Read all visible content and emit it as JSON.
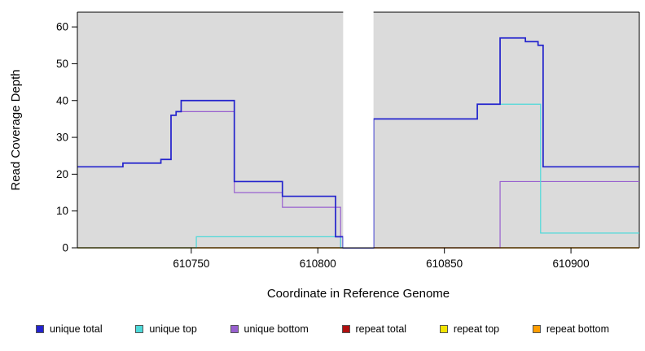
{
  "chart_data": {
    "type": "line",
    "step": true,
    "title": "",
    "xlabel": "Coordinate in Reference Genome",
    "ylabel": "Read Coverage Depth",
    "xlim": [
      610705,
      610927
    ],
    "ylim": [
      0,
      64
    ],
    "xticks": [
      610750,
      610800,
      610850,
      610900
    ],
    "yticks": [
      0,
      10,
      20,
      30,
      40,
      50,
      60
    ],
    "grid": false,
    "plot_bg": "#dbdbdb",
    "gap_band": {
      "x0": 610810,
      "x1": 610822,
      "color": "#ffffff"
    },
    "legend_position": "bottom",
    "draw_order": [
      "repeat total",
      "repeat top",
      "unique bottom",
      "repeat bottom",
      "unique top",
      "unique total"
    ],
    "series": [
      {
        "name": "unique total",
        "color": "#2323cd",
        "width": 1.7,
        "points": [
          [
            610705,
            22
          ],
          [
            610723,
            23
          ],
          [
            610738,
            24
          ],
          [
            610742,
            36
          ],
          [
            610744,
            37
          ],
          [
            610746,
            40
          ],
          [
            610767,
            18
          ],
          [
            610786,
            14
          ],
          [
            610807,
            3
          ],
          [
            610810,
            0
          ],
          [
            610822,
            35
          ],
          [
            610863,
            39
          ],
          [
            610872,
            57
          ],
          [
            610882,
            56
          ],
          [
            610887,
            55
          ],
          [
            610889,
            22
          ],
          [
            610927,
            22
          ]
        ]
      },
      {
        "name": "unique top",
        "color": "#4dd9d9",
        "width": 1.2,
        "points": [
          [
            610705,
            0
          ],
          [
            610752,
            3
          ],
          [
            610809,
            0
          ],
          [
            610822,
            35
          ],
          [
            610863,
            39
          ],
          [
            610888,
            4
          ],
          [
            610927,
            4
          ]
        ]
      },
      {
        "name": "unique bottom",
        "color": "#9860cf",
        "width": 1.2,
        "points": [
          [
            610705,
            22
          ],
          [
            610723,
            23
          ],
          [
            610738,
            24
          ],
          [
            610742,
            36
          ],
          [
            610744,
            37
          ],
          [
            610767,
            15
          ],
          [
            610786,
            11
          ],
          [
            610809,
            0
          ],
          [
            610872,
            18
          ],
          [
            610927,
            18
          ]
        ]
      },
      {
        "name": "repeat total",
        "color": "#b01010",
        "width": 1.2,
        "points": [
          [
            610705,
            0
          ],
          [
            610927,
            0
          ]
        ]
      },
      {
        "name": "repeat top",
        "color": "#f2e400",
        "width": 1.2,
        "points": [
          [
            610705,
            0
          ],
          [
            610927,
            0
          ]
        ]
      },
      {
        "name": "repeat bottom",
        "color": "#ff9d00",
        "width": 1.2,
        "points": [
          [
            610705,
            0
          ],
          [
            610927,
            0
          ]
        ]
      }
    ]
  },
  "legend": {
    "items": [
      {
        "label": "unique total",
        "color": "#2323cd"
      },
      {
        "label": "unique top",
        "color": "#4dd9d9"
      },
      {
        "label": "unique bottom",
        "color": "#9860cf"
      },
      {
        "label": "repeat total",
        "color": "#b01010"
      },
      {
        "label": "repeat top",
        "color": "#f2e400"
      },
      {
        "label": "repeat bottom",
        "color": "#ff9d00"
      }
    ]
  }
}
